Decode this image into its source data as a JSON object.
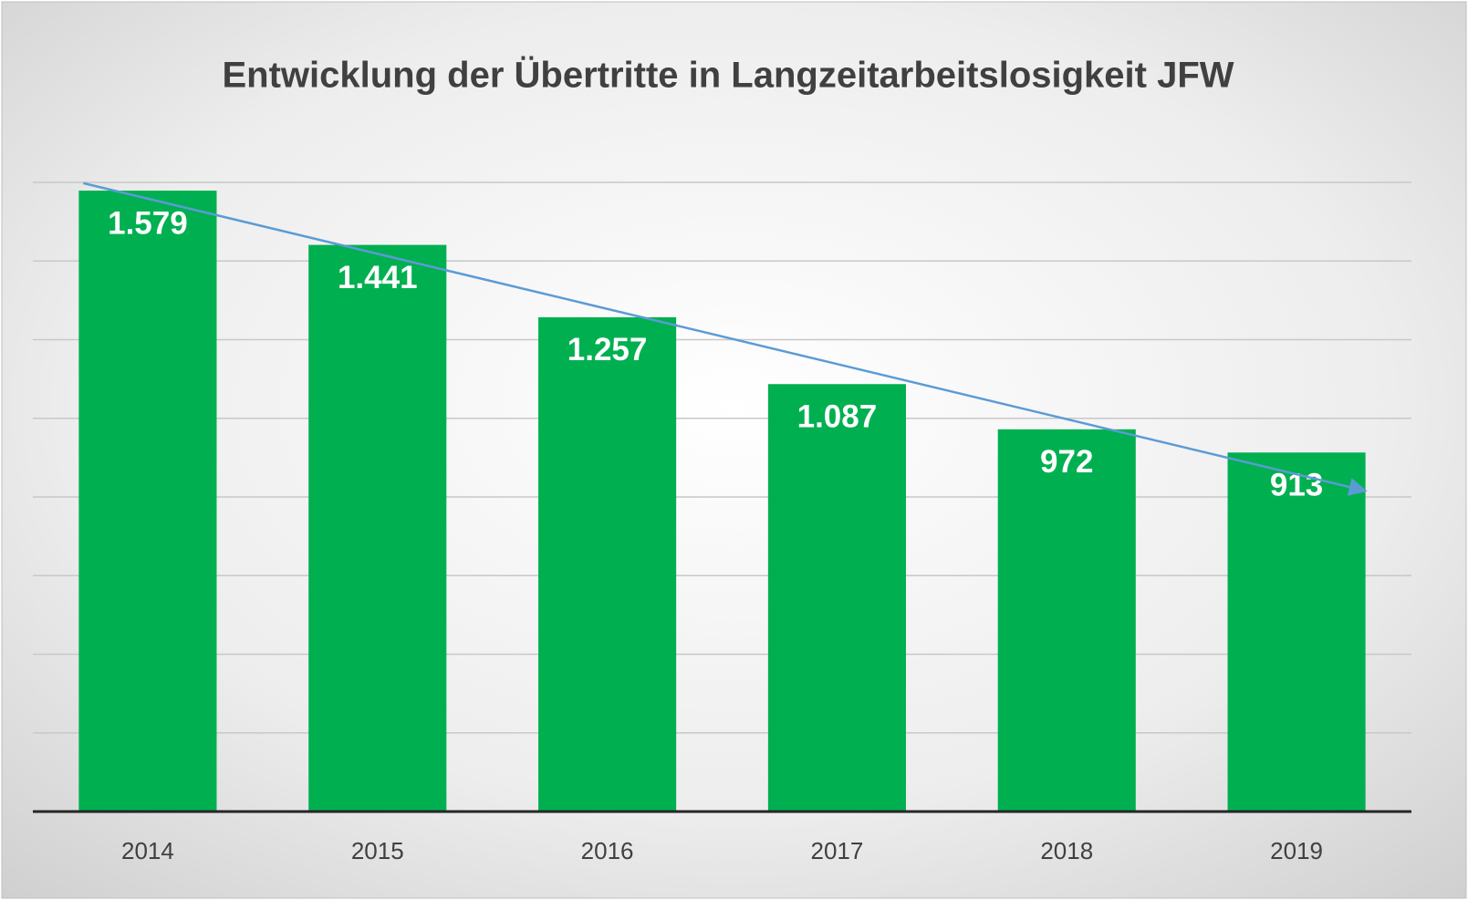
{
  "chart_data": {
    "type": "bar",
    "title": "Entwicklung der Übertritte in Langzeitarbeitslosigkeit JFW",
    "categories": [
      "2014",
      "2015",
      "2016",
      "2017",
      "2018",
      "2019"
    ],
    "values": [
      1579,
      1441,
      1257,
      1087,
      972,
      913
    ],
    "value_labels": [
      "1.579",
      "1.441",
      "1.257",
      "1.087",
      "972",
      "913"
    ],
    "color": "#00b050",
    "ylim": [
      0,
      1600
    ],
    "yticks": [
      0,
      200,
      400,
      600,
      800,
      1000,
      1200,
      1400,
      1600
    ],
    "grid": true,
    "trendline": {
      "type": "linear",
      "color": "#5b9bd5"
    }
  }
}
